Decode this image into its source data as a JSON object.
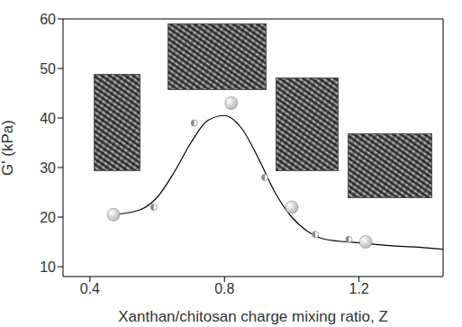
{
  "chart_data": {
    "type": "scatter",
    "x_label": "Xanthan/chitosan charge mixing ratio, Z",
    "y_label": "G' (kPa)",
    "xlim": [
      0.32,
      1.45
    ],
    "xticks": [
      0.4,
      0.8,
      1.2
    ],
    "ylim": [
      8,
      60
    ],
    "yticks": [
      10,
      20,
      30,
      40,
      50,
      60
    ],
    "grid": false,
    "series": [
      {
        "type": "line",
        "color": "#000000",
        "line_style": "solid",
        "marker": "none",
        "x": [
          0.47,
          0.55,
          0.6,
          0.65,
          0.7,
          0.75,
          0.8,
          0.85,
          0.9,
          0.95,
          1.0,
          1.05,
          1.1,
          1.2,
          1.3,
          1.4,
          1.45
        ],
        "values": [
          20.5,
          21.5,
          24,
          29,
          35,
          39.5,
          40.5,
          38,
          32,
          25,
          20,
          17,
          15.5,
          14.8,
          14.2,
          13.8,
          13.5
        ]
      },
      {
        "type": "scatter",
        "color": "#b4b4b4",
        "marker": "circle",
        "x": [
          0.47,
          0.82,
          1.0,
          1.22
        ],
        "values": [
          20.5,
          43,
          22,
          15
        ]
      },
      {
        "type": "scatter",
        "color": "#8a8a8a",
        "marker": "half_circle",
        "x": [
          0.59,
          0.71,
          0.92,
          1.07,
          1.17
        ],
        "values": [
          22,
          39,
          28,
          16.5,
          15.5
        ]
      }
    ]
  }
}
